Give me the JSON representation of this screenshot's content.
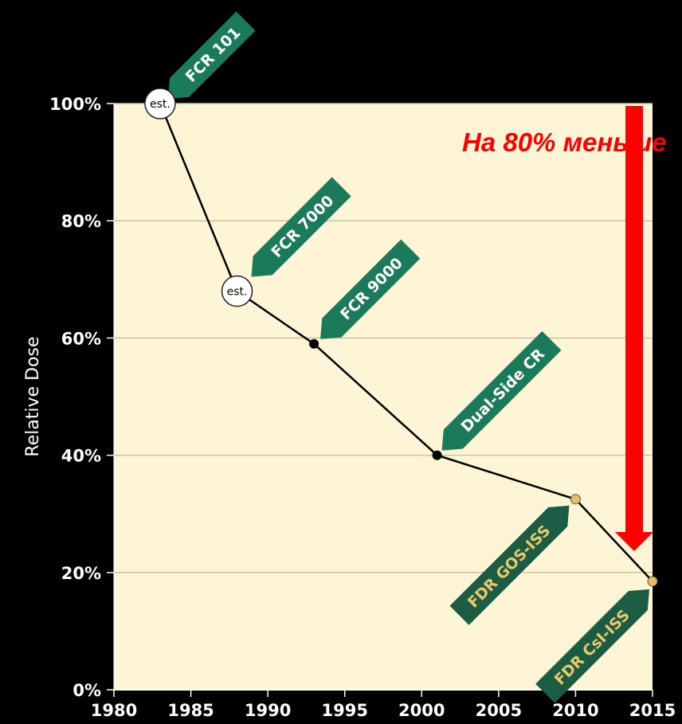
{
  "chart_data": {
    "type": "line",
    "title": "",
    "xlabel": "",
    "ylabel": "Relative Dose",
    "xlim": [
      1980,
      2015
    ],
    "ylim": [
      0,
      100
    ],
    "x_ticks": [
      "1980",
      "1985",
      "1990",
      "1995",
      "2000",
      "2005",
      "2010",
      "2015"
    ],
    "y_ticks": [
      "0%",
      "20%",
      "40%",
      "60%",
      "80%",
      "100%"
    ],
    "grid": "horizontal",
    "background_color": "#fdf5d6",
    "series": [
      {
        "color": "#000000",
        "points": [
          {
            "x": 1983,
            "y": 100,
            "label": "FCR 101",
            "marker": "est.",
            "marker_label": "est."
          },
          {
            "x": 1988,
            "y": 68,
            "label": "FCR 7000",
            "marker": "est.",
            "marker_label": "est."
          },
          {
            "x": 1993,
            "y": 59,
            "label": "FCR 9000",
            "marker": "dot"
          },
          {
            "x": 2001,
            "y": 40,
            "label": "Dual-Side CR",
            "marker": "dot"
          },
          {
            "x": 2010,
            "y": 32.5,
            "label": "FDR GOS-ISS",
            "marker": "gold-dot"
          },
          {
            "x": 2015,
            "y": 18.5,
            "label": "FDR CsI-ISS",
            "marker": "gold-dot"
          }
        ]
      }
    ],
    "annotation": {
      "text": "На 80% меньше",
      "color": "#ff0000"
    },
    "colors": {
      "tag_green": "#1a7a5a",
      "fdr_tag": "#1d5c44",
      "fdr_text": "#e9c96a",
      "gold_dot": "#e8c064",
      "arrow": "#ff0000"
    }
  }
}
